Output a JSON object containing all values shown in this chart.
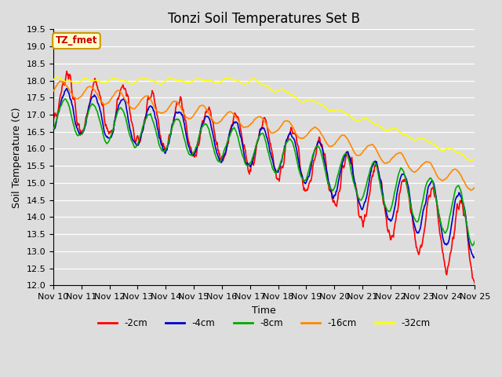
{
  "title": "Tonzi Soil Temperatures Set B",
  "xlabel": "Time",
  "ylabel": "Soil Temperature (C)",
  "ylim": [
    12.0,
    19.5
  ],
  "yticks": [
    12.0,
    12.5,
    13.0,
    13.5,
    14.0,
    14.5,
    15.0,
    15.5,
    16.0,
    16.5,
    17.0,
    17.5,
    18.0,
    18.5,
    19.0,
    19.5
  ],
  "xtick_labels": [
    "Nov 10",
    "Nov 11",
    "Nov 12",
    "Nov 13",
    "Nov 14",
    "Nov 15",
    "Nov 16",
    "Nov 17",
    "Nov 18",
    "Nov 19",
    "Nov 20",
    "Nov 21",
    "Nov 22",
    "Nov 23",
    "Nov 24",
    "Nov 25"
  ],
  "colors": {
    "-2cm": "#ff0000",
    "-4cm": "#0000cc",
    "-8cm": "#00aa00",
    "-16cm": "#ff8800",
    "-32cm": "#ffff00"
  },
  "line_width": 1.2,
  "background_color": "#dddddd",
  "plot_bg_color": "#dddddd",
  "grid_color": "#ffffff",
  "legend_label": "TZ_fmet",
  "legend_bg": "#ffffcc",
  "legend_edge": "#cc9900",
  "legend_text_color": "#cc0000",
  "title_fontsize": 12,
  "axis_fontsize": 9,
  "tick_fontsize": 8
}
